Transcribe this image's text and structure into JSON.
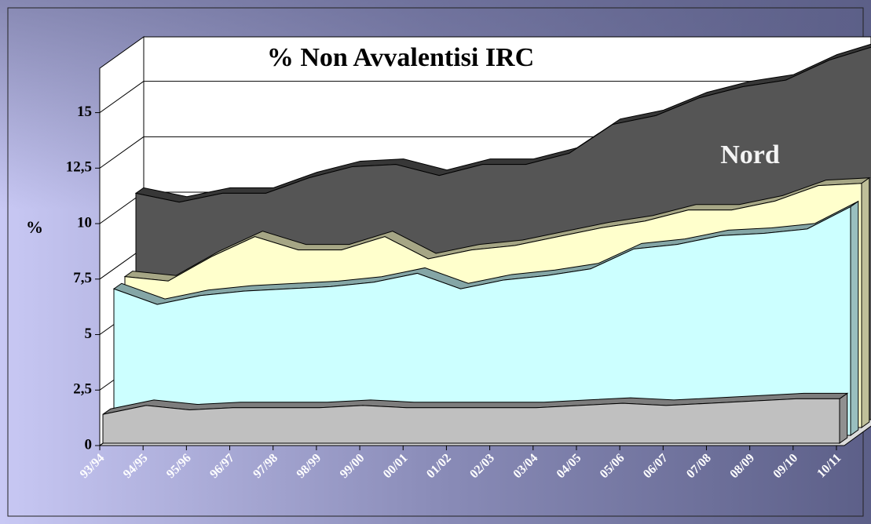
{
  "chart_data": {
    "type": "area3d",
    "title": "% Non Avvalentisi IRC",
    "ylabel": "%",
    "categories": [
      "93/94",
      "94/95",
      "95/96",
      "96/97",
      "97/98",
      "98/99",
      "99/00",
      "00/01",
      "01/02",
      "02/03",
      "03/04",
      "04/05",
      "05/06",
      "06/07",
      "07/08",
      "08/09",
      "09/10",
      "10/11"
    ],
    "series": [
      {
        "color": "#c0c0c0",
        "values": [
          1.3,
          1.7,
          1.5,
          1.6,
          1.6,
          1.6,
          1.7,
          1.6,
          1.6,
          1.6,
          1.6,
          1.7,
          1.8,
          1.7,
          1.8,
          1.9,
          2.0,
          2.0
        ]
      },
      {
        "color": "#ccffff",
        "values": [
          6.6,
          5.9,
          6.3,
          6.5,
          6.6,
          6.7,
          6.9,
          7.3,
          6.6,
          7.0,
          7.2,
          7.5,
          8.4,
          8.6,
          9.0,
          9.1,
          9.3,
          10.3
        ]
      },
      {
        "color": "#ffffcc",
        "values": [
          6.8,
          6.6,
          7.7,
          8.6,
          8.0,
          8.0,
          8.6,
          7.6,
          8.0,
          8.2,
          8.6,
          9.0,
          9.3,
          9.8,
          9.8,
          10.2,
          10.9,
          11.0
        ]
      },
      {
        "name": "Nord",
        "color": "#555555",
        "values": [
          10.2,
          9.8,
          10.2,
          10.2,
          10.9,
          11.4,
          11.5,
          11.0,
          11.5,
          11.5,
          12.0,
          13.3,
          13.7,
          14.5,
          15.0,
          15.3,
          16.2,
          16.8
        ]
      }
    ],
    "ylim": [
      0,
      17
    ],
    "yticks": [
      0,
      {
        "value": 2.5,
        "label": "2,5"
      },
      5,
      {
        "value": 7.5,
        "label": "7,5"
      },
      10,
      {
        "value": 12.5,
        "label": "12,5"
      },
      15
    ],
    "grid": true
  }
}
